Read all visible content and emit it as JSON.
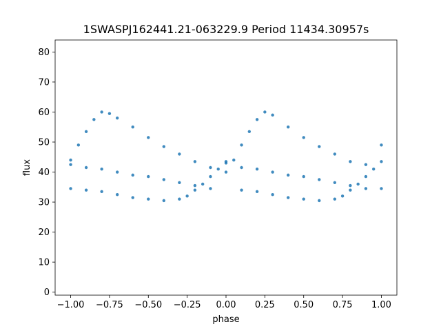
{
  "chart_data": {
    "type": "scatter",
    "title": "1SWASPJ162441.21-063229.9 Period 11434.30957s",
    "xlabel": "phase",
    "ylabel": "flux",
    "xlim": [
      -1.1,
      1.1
    ],
    "ylim": [
      -1,
      84
    ],
    "grid": false,
    "legend": "none",
    "point_color": "#1f77b4",
    "x_ticks": [
      -1.0,
      -0.75,
      -0.5,
      -0.25,
      0.0,
      0.25,
      0.5,
      0.75,
      1.0
    ],
    "x_tick_labels": [
      "−1.00",
      "−0.75",
      "−0.50",
      "−0.25",
      "0.00",
      "0.25",
      "0.50",
      "0.75",
      "1.00"
    ],
    "y_ticks": [
      0,
      10,
      20,
      30,
      40,
      50,
      60,
      70,
      80
    ],
    "y_tick_labels": [
      "0",
      "10",
      "20",
      "30",
      "40",
      "50",
      "60",
      "70",
      "80"
    ],
    "series": [
      {
        "x": [
          -1.0,
          -0.95,
          -0.9,
          -0.85,
          -0.8,
          -0.75,
          -0.7,
          -0.6,
          -0.5,
          -0.4,
          -0.3,
          -0.2,
          -0.1,
          0.0,
          0.05,
          0.1,
          0.15,
          0.2,
          0.25,
          0.3,
          0.4,
          0.5,
          0.6,
          0.7,
          0.8,
          0.9,
          1.0
        ],
        "y": [
          44,
          49,
          53.5,
          57.5,
          60,
          59.5,
          58,
          55,
          51.5,
          48.5,
          46,
          43.5,
          41.5,
          40,
          44,
          49,
          53.5,
          57.5,
          60,
          59,
          55,
          51.5,
          48.5,
          46,
          43.5,
          42.5,
          49
        ]
      },
      {
        "x": [
          -1.0,
          -0.9,
          -0.8,
          -0.7,
          -0.6,
          -0.5,
          -0.4,
          -0.3,
          -0.2,
          -0.1,
          0.0,
          0.1,
          0.2,
          0.3,
          0.4,
          0.5,
          0.6,
          0.7,
          0.8,
          0.9,
          1.0
        ],
        "y": [
          42.5,
          41.5,
          41,
          40,
          39,
          38.5,
          37.5,
          36.5,
          35.5,
          34.5,
          43,
          41.5,
          41,
          40,
          39,
          38.5,
          37.5,
          36.5,
          35.5,
          34.5,
          34.5
        ]
      },
      {
        "x": [
          -1.0,
          -0.9,
          -0.8,
          -0.7,
          -0.6,
          -0.5,
          -0.4,
          -0.3,
          -0.25,
          -0.2,
          -0.15,
          -0.1,
          -0.05,
          0.0,
          0.1,
          0.2,
          0.3,
          0.4,
          0.5,
          0.6,
          0.7,
          0.75,
          0.8,
          0.85,
          0.9,
          0.95,
          1.0
        ],
        "y": [
          34.5,
          34,
          33.5,
          32.5,
          31.5,
          31,
          30.5,
          31,
          32,
          34,
          36,
          38.5,
          41,
          43.5,
          34,
          33.5,
          32.5,
          31.5,
          31,
          30.5,
          31,
          32,
          34,
          36,
          38.5,
          41,
          43.5
        ]
      }
    ]
  }
}
